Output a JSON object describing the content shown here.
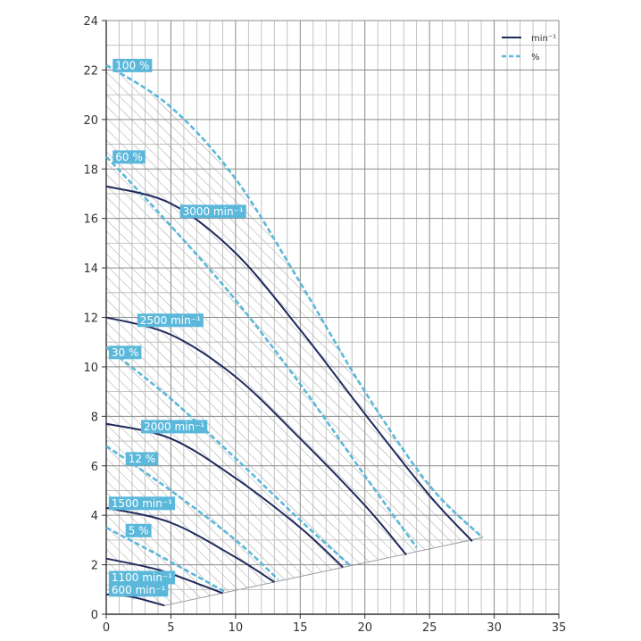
{
  "chart_data": {
    "type": "line",
    "xlim": [
      0,
      35
    ],
    "ylim": [
      0,
      24
    ],
    "x_ticks": [
      0,
      5,
      10,
      15,
      20,
      25,
      30,
      35
    ],
    "y_ticks": [
      0,
      2,
      4,
      6,
      8,
      10,
      12,
      14,
      16,
      18,
      20,
      22,
      24
    ],
    "grid": true,
    "legend_position": "top-right",
    "legend": [
      {
        "label": "min-1",
        "style": "solid",
        "color": "#1f2a5c"
      },
      {
        "label": "%",
        "style": "dashed",
        "color": "#5bb8da"
      }
    ],
    "colors": {
      "speed_curve": "#1f2a5c",
      "efficiency_curve": "#5bb8da",
      "label_bg": "#5bb8da",
      "grid": "#9a9a9a",
      "hatch": "#8c8c8c"
    },
    "operating_region": [
      {
        "x": 0,
        "y": 22.2
      },
      {
        "x": 5,
        "y": 20.5
      },
      {
        "x": 10,
        "y": 17.6
      },
      {
        "x": 15,
        "y": 13.4
      },
      {
        "x": 20,
        "y": 9.0
      },
      {
        "x": 25,
        "y": 5.2
      },
      {
        "x": 29.1,
        "y": 3.1
      },
      {
        "x": 4.5,
        "y": 0.35
      },
      {
        "x": 0,
        "y": 0.8
      }
    ],
    "speed_curves": [
      {
        "label": "3000 min-1",
        "points": [
          {
            "x": 0,
            "y": 17.3
          },
          {
            "x": 5,
            "y": 16.6
          },
          {
            "x": 10,
            "y": 14.6
          },
          {
            "x": 15,
            "y": 11.5
          },
          {
            "x": 20,
            "y": 8.1
          },
          {
            "x": 25,
            "y": 4.8
          },
          {
            "x": 28.3,
            "y": 2.95
          }
        ]
      },
      {
        "label": "2500 min-1",
        "points": [
          {
            "x": 0,
            "y": 12.0
          },
          {
            "x": 5,
            "y": 11.3
          },
          {
            "x": 10,
            "y": 9.6
          },
          {
            "x": 15,
            "y": 7.1
          },
          {
            "x": 20,
            "y": 4.4
          },
          {
            "x": 23.2,
            "y": 2.4
          }
        ]
      },
      {
        "label": "2000 min-1",
        "points": [
          {
            "x": 0,
            "y": 7.7
          },
          {
            "x": 5,
            "y": 7.1
          },
          {
            "x": 10,
            "y": 5.5
          },
          {
            "x": 15,
            "y": 3.5
          },
          {
            "x": 18.3,
            "y": 1.9
          }
        ]
      },
      {
        "label": "1500 min-1",
        "points": [
          {
            "x": 0,
            "y": 4.3
          },
          {
            "x": 5,
            "y": 3.7
          },
          {
            "x": 10,
            "y": 2.3
          },
          {
            "x": 13.0,
            "y": 1.3
          }
        ]
      },
      {
        "label": "1100 min-1",
        "points": [
          {
            "x": 0,
            "y": 2.25
          },
          {
            "x": 4,
            "y": 1.8
          },
          {
            "x": 7,
            "y": 1.25
          },
          {
            "x": 9.0,
            "y": 0.85
          }
        ]
      },
      {
        "label": "600 min-1",
        "points": [
          {
            "x": 0,
            "y": 0.8
          },
          {
            "x": 2,
            "y": 0.7
          },
          {
            "x": 4.5,
            "y": 0.35
          }
        ]
      }
    ],
    "efficiency_curves": [
      {
        "label": "100 %",
        "points": [
          {
            "x": 0,
            "y": 22.2
          },
          {
            "x": 5,
            "y": 20.5
          },
          {
            "x": 10,
            "y": 17.6
          },
          {
            "x": 15,
            "y": 13.4
          },
          {
            "x": 20,
            "y": 9.0
          },
          {
            "x": 25,
            "y": 5.2
          },
          {
            "x": 29.1,
            "y": 3.1
          }
        ]
      },
      {
        "label": "60 %",
        "points": [
          {
            "x": 0,
            "y": 18.5
          },
          {
            "x": 5,
            "y": 15.7
          },
          {
            "x": 10,
            "y": 12.7
          },
          {
            "x": 15,
            "y": 9.3
          },
          {
            "x": 20,
            "y": 5.6
          },
          {
            "x": 24.0,
            "y": 2.7
          }
        ]
      },
      {
        "label": "30 %",
        "points": [
          {
            "x": 0,
            "y": 10.8
          },
          {
            "x": 5,
            "y": 8.7
          },
          {
            "x": 10,
            "y": 6.3
          },
          {
            "x": 15,
            "y": 3.8
          },
          {
            "x": 18.8,
            "y": 2.0
          }
        ]
      },
      {
        "label": "12 %",
        "points": [
          {
            "x": 0,
            "y": 6.8
          },
          {
            "x": 5,
            "y": 5.0
          },
          {
            "x": 10,
            "y": 3.0
          },
          {
            "x": 13.3,
            "y": 1.4
          }
        ]
      },
      {
        "label": "5 %",
        "points": [
          {
            "x": 0,
            "y": 3.5
          },
          {
            "x": 4,
            "y": 2.4
          },
          {
            "x": 9.2,
            "y": 0.9
          }
        ]
      }
    ],
    "series_labels": [
      {
        "text": "100 %",
        "x": 0.5,
        "y": 22.2
      },
      {
        "text": "60 %",
        "x": 0.5,
        "y": 18.5
      },
      {
        "text": "3000 min-1",
        "x": 5.7,
        "y": 16.3
      },
      {
        "text": "2500 min-1",
        "x": 2.4,
        "y": 11.9
      },
      {
        "text": "30 %",
        "x": 0.2,
        "y": 10.6
      },
      {
        "text": "2000 min-1",
        "x": 2.7,
        "y": 7.6
      },
      {
        "text": "12 %",
        "x": 1.5,
        "y": 6.3
      },
      {
        "text": "1500 min-1",
        "x": 0.2,
        "y": 4.5
      },
      {
        "text": "5 %",
        "x": 1.5,
        "y": 3.4
      },
      {
        "text": "1100 min-1",
        "x": 0.2,
        "y": 1.5
      },
      {
        "text": "600 min-1",
        "x": 0.2,
        "y": 1.0
      }
    ]
  }
}
